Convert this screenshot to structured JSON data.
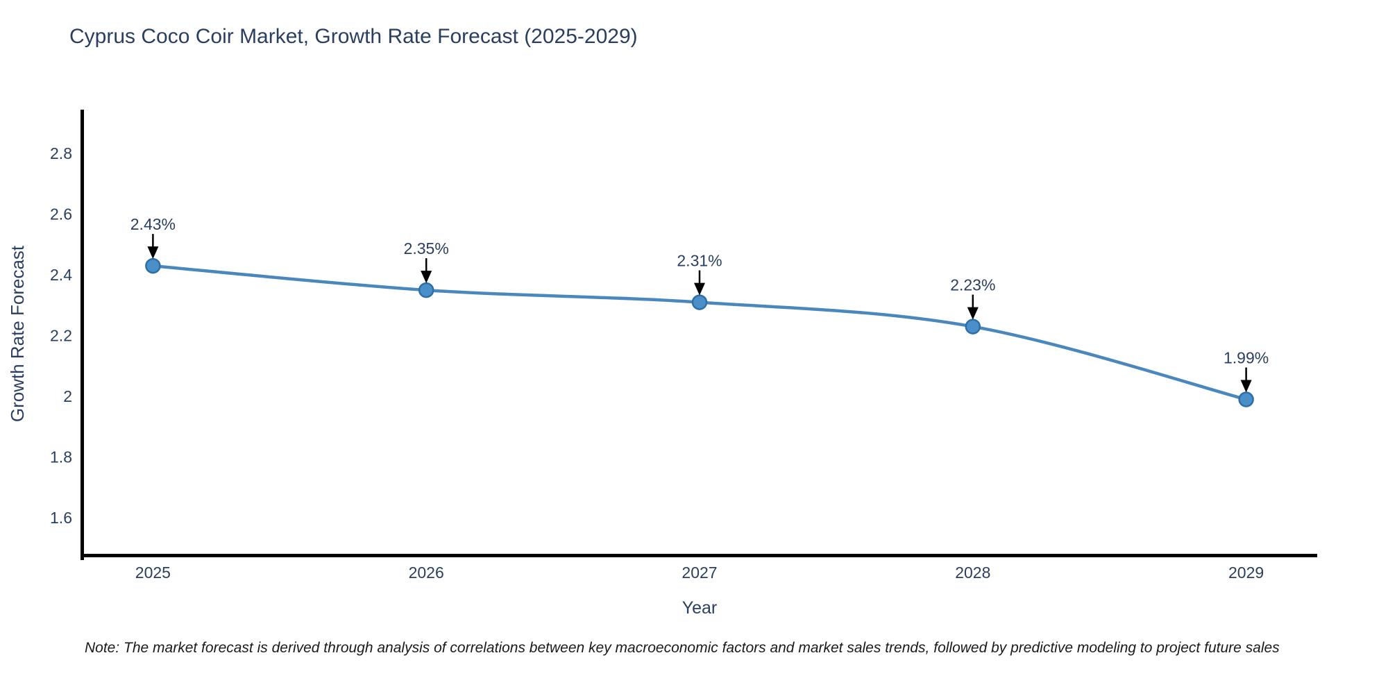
{
  "chart_data": {
    "type": "line",
    "title": "Cyprus Coco Coir Market, Growth Rate Forecast (2025-2029)",
    "xlabel": "Year",
    "ylabel": "Growth Rate Forecast",
    "x": [
      2025,
      2026,
      2027,
      2028,
      2029
    ],
    "series": [
      {
        "name": "Growth Rate Forecast",
        "values": [
          2.43,
          2.35,
          2.31,
          2.23,
          1.99
        ],
        "point_labels": [
          "2.43%",
          "2.35%",
          "2.31%",
          "2.23%",
          "1.99%"
        ]
      }
    ],
    "xtick_labels": [
      "2025",
      "2026",
      "2027",
      "2028",
      "2029"
    ],
    "yticks": [
      2.8,
      2.6,
      2.4,
      2.2,
      2.0,
      1.8,
      1.6
    ],
    "ytick_labels": [
      "2.8",
      "2.6",
      "2.4",
      "2.2",
      "2",
      "1.8",
      "1.6"
    ],
    "xlim": [
      2024.74,
      2029.26
    ],
    "ylim": [
      1.47,
      2.94
    ],
    "grid": false,
    "legend_position": "none",
    "line_shape": "spline",
    "colors": {
      "line": "#4a87bd",
      "marker_fill": "#4a8fc7",
      "marker_stroke": "#2f6fa8",
      "axis_line": "#000000",
      "text": "#2a3f5f",
      "annotation_arrow": "#000000",
      "note_text": "#1a1a1a",
      "background": "#ffffff"
    },
    "note": "Note: The market forecast is derived through analysis of correlations between key macroeconomic factors and market sales trends, followed by predictive modeling to project future sales"
  }
}
